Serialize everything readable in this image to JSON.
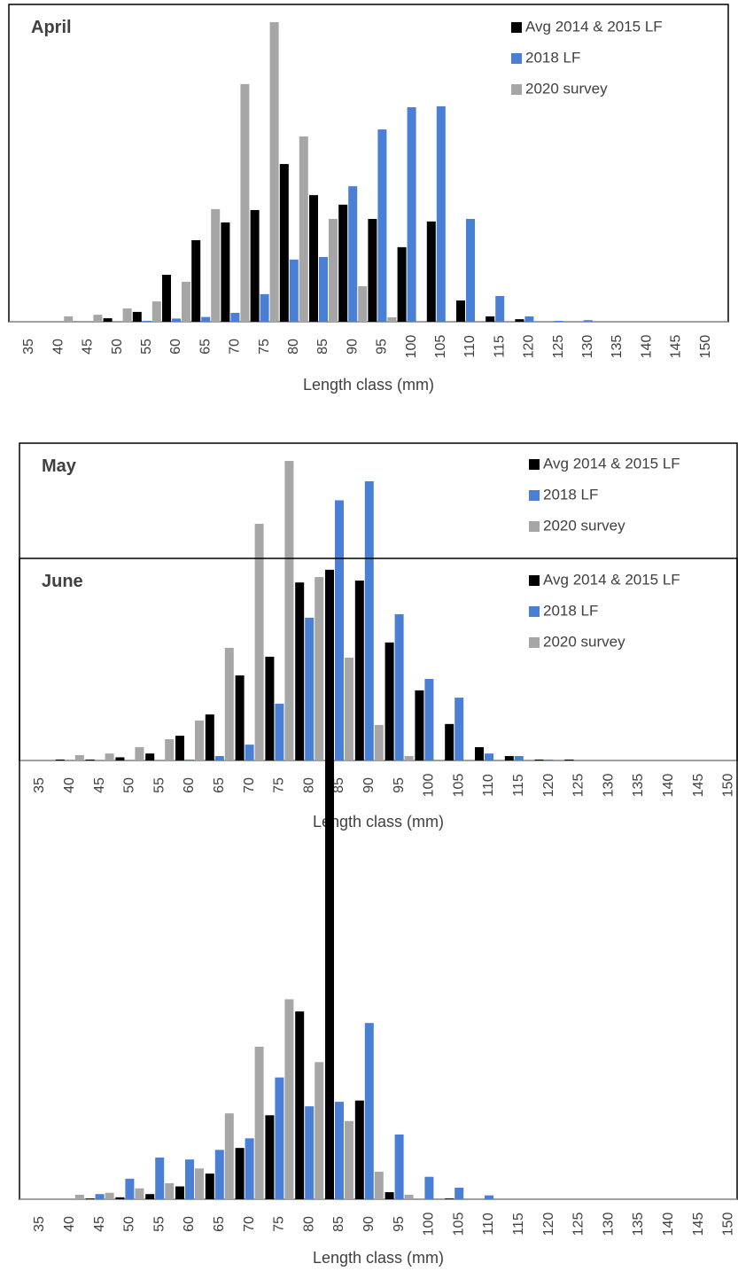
{
  "chart_data": [
    {
      "type": "bar",
      "title": "April",
      "x_label": "Length class (mm)",
      "categories": [
        35,
        40,
        45,
        50,
        55,
        60,
        65,
        70,
        75,
        80,
        85,
        90,
        95,
        100,
        105,
        110,
        115,
        120,
        125,
        130,
        135,
        140,
        145,
        150
      ],
      "ylim": [
        0,
        100
      ],
      "series": [
        {
          "name": "Avg 2014 & 2015 LF",
          "color": "#000000",
          "values": [
            0,
            0,
            0,
            1.1,
            3.1,
            14.8,
            25.7,
            31.3,
            35.2,
            49.7,
            39.9,
            36.9,
            32.4,
            23.5,
            31.6,
            6.7,
            1.7,
            0.8,
            0,
            0,
            0,
            0,
            0,
            0
          ]
        },
        {
          "name": "2018 LF",
          "color": "#4a7fd6",
          "values": [
            0,
            0,
            0,
            0,
            0.3,
            1,
            1.5,
            2.8,
            8.7,
            19.6,
            20.4,
            42.7,
            60.6,
            67.6,
            67.9,
            32.4,
            8.1,
            1.7,
            0.3,
            0.5,
            0,
            0,
            0,
            0
          ]
        },
        {
          "name": "2020 survey",
          "color": "#a6a6a6",
          "values": [
            0,
            1.7,
            2.2,
            4.2,
            6.4,
            12.6,
            35.5,
            74.9,
            94.4,
            58.4,
            32.4,
            11.2,
            1.4,
            0,
            0,
            0,
            0,
            0,
            0,
            0,
            0,
            0,
            0,
            0
          ]
        }
      ]
    },
    {
      "type": "bar",
      "title": "May",
      "x_label": "Length class (mm)",
      "categories": [
        35,
        40,
        45,
        50,
        55,
        60,
        65,
        70,
        75,
        80,
        85,
        90,
        95,
        100,
        105,
        110,
        115,
        120,
        125,
        130,
        135,
        140,
        145,
        150
      ],
      "ylim": [
        0,
        100
      ],
      "series": [
        {
          "name": "Avg 2014 & 2015 LF",
          "color": "#000000",
          "values": [
            0,
            0.3,
            0.3,
            1,
            2.2,
            7.8,
            14.5,
            26.8,
            32.7,
            56.1,
            60.1,
            56.7,
            37.2,
            22.1,
            11.5,
            4.2,
            1.4,
            0.3,
            0.3,
            0,
            0,
            0,
            0,
            0
          ]
        },
        {
          "name": "2018 LF",
          "color": "#4a7fd6",
          "values": [
            0,
            0,
            0,
            0,
            0,
            0.3,
            1.4,
            5,
            17.9,
            45,
            82,
            88,
            46.1,
            25.7,
            19.8,
            2.2,
            1.4,
            0.3,
            0,
            0,
            0,
            0,
            0,
            0
          ]
        },
        {
          "name": "2020 survey",
          "color": "#a6a6a6",
          "values": [
            0,
            1.7,
            2.2,
            4.2,
            6.7,
            12.6,
            35.5,
            74.6,
            94.4,
            57.8,
            32.4,
            11.2,
            1.4,
            0,
            0,
            0,
            0,
            0,
            0,
            0,
            0,
            0,
            0,
            0
          ]
        }
      ]
    },
    {
      "type": "bar",
      "title": "June",
      "x_label": "Length class (mm)",
      "categories": [
        35,
        40,
        45,
        50,
        55,
        60,
        65,
        70,
        75,
        80,
        85,
        90,
        95,
        100,
        105,
        110,
        115,
        120,
        125,
        130,
        135,
        140,
        145,
        150
      ],
      "ylim": [
        0,
        100
      ],
      "series": [
        {
          "name": "Avg 2014 & 2015 LF",
          "color": "#000000",
          "values": [
            0,
            0,
            0.1,
            0.3,
            0.8,
            2,
            4,
            8,
            13.1,
            29.3,
            97.5,
            15.4,
            1.1,
            0,
            0.1,
            0,
            0,
            0,
            0,
            0,
            0,
            0,
            0,
            0
          ]
        },
        {
          "name": "2018 LF",
          "color": "#4a7fd6",
          "values": [
            0,
            0,
            0.8,
            3.2,
            6.5,
            6.2,
            7.7,
            9.5,
            19,
            14.5,
            15.2,
            27.5,
            10.1,
            3.5,
            1.8,
            0.6,
            0,
            0,
            0,
            0,
            0,
            0,
            0,
            0
          ]
        },
        {
          "name": "2020 survey",
          "color": "#a6a6a6",
          "values": [
            0,
            0.7,
            1,
            1.7,
            2.5,
            4.8,
            13.4,
            23.8,
            31.2,
            21.4,
            12.2,
            4.3,
            0.7,
            0,
            0,
            0,
            0,
            0,
            0,
            0,
            0,
            0,
            0,
            0
          ]
        }
      ]
    }
  ]
}
